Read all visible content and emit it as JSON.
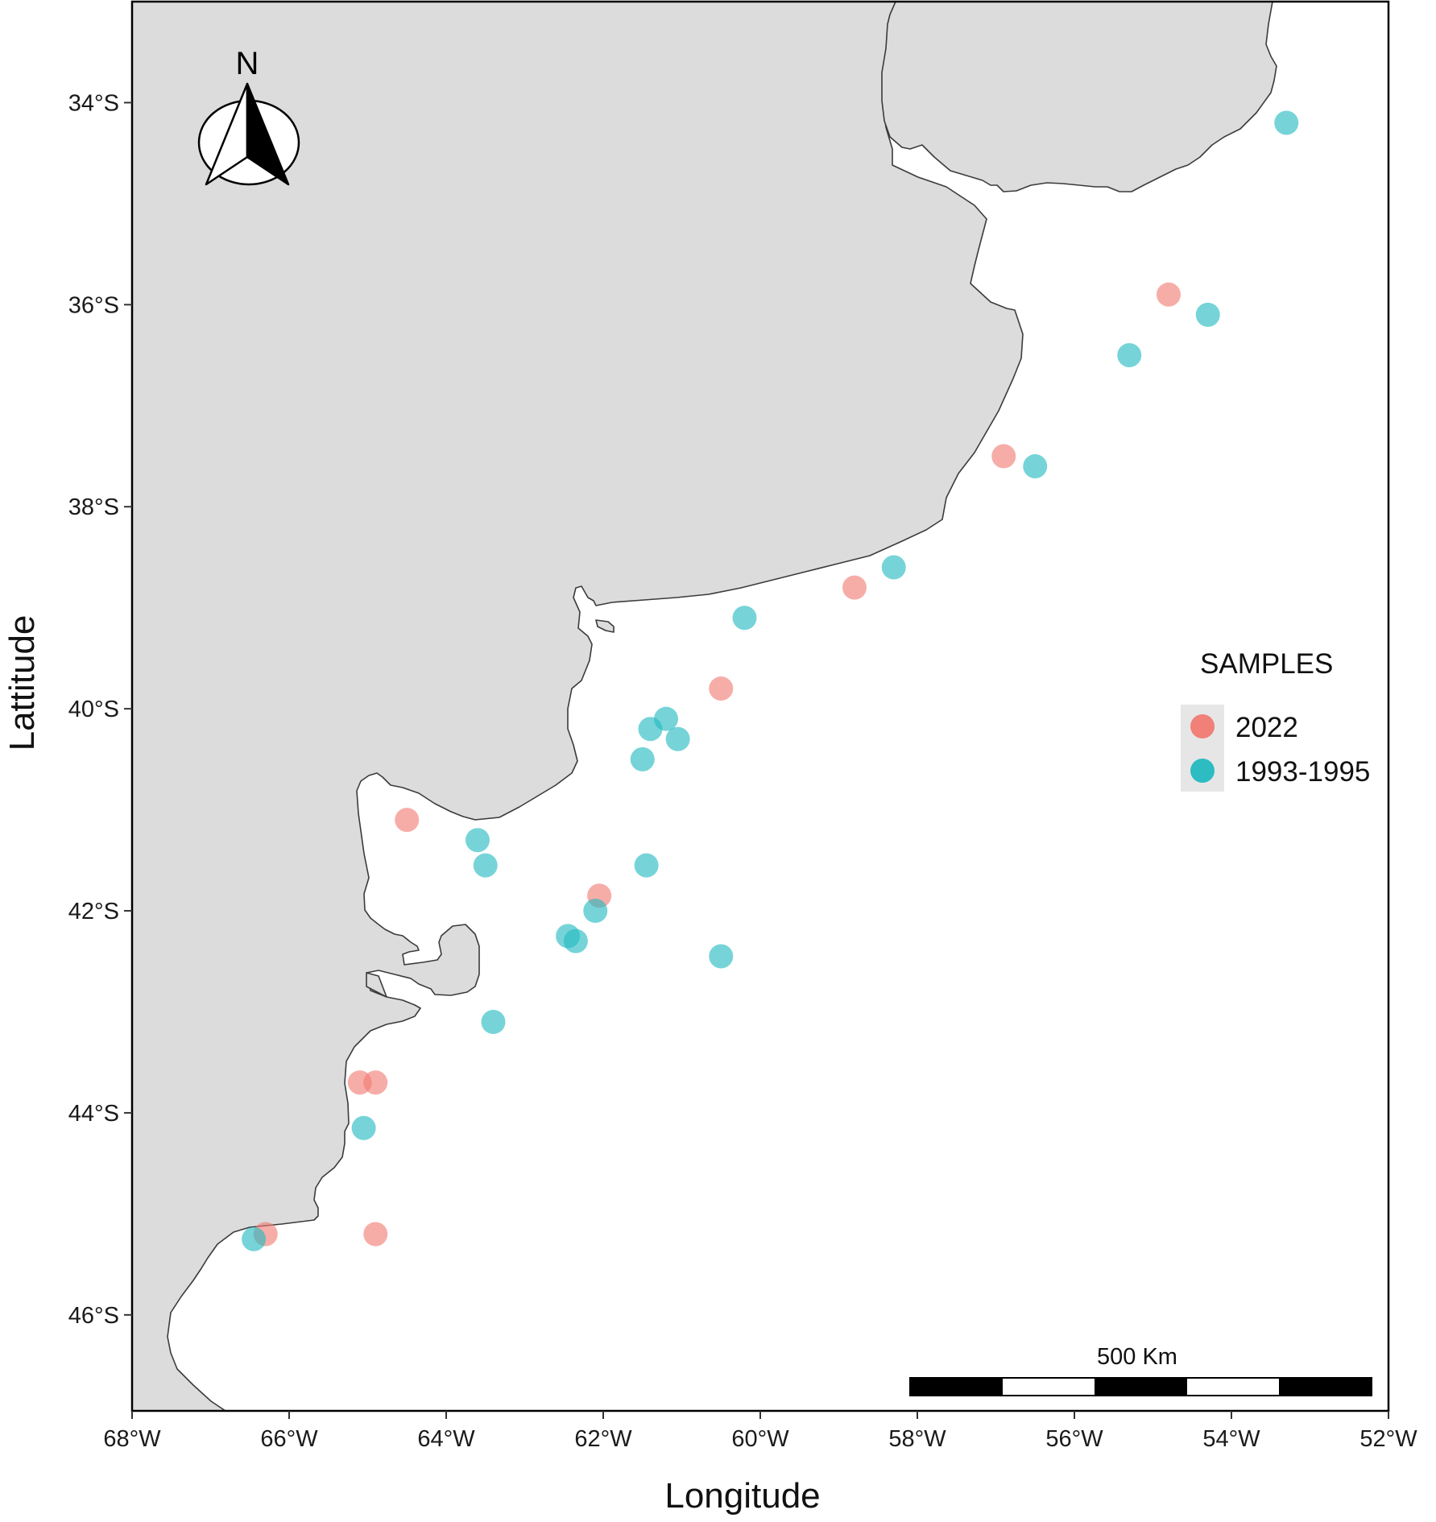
{
  "map": {
    "xlabel": "Longitude",
    "ylabel": "Lattitude",
    "lon_range": [
      -68,
      -52
    ],
    "lat_range": [
      -46.95,
      -33.0
    ],
    "x_ticks": [
      {
        "value": -68,
        "label": "68°W"
      },
      {
        "value": -66,
        "label": "66°W"
      },
      {
        "value": -64,
        "label": "64°W"
      },
      {
        "value": -62,
        "label": "62°W"
      },
      {
        "value": -60,
        "label": "60°W"
      },
      {
        "value": -58,
        "label": "58°W"
      },
      {
        "value": -56,
        "label": "56°W"
      },
      {
        "value": -54,
        "label": "54°W"
      },
      {
        "value": -52,
        "label": "52°W"
      }
    ],
    "y_ticks": [
      {
        "value": -34,
        "label": "34°S"
      },
      {
        "value": -36,
        "label": "36°S"
      },
      {
        "value": -38,
        "label": "38°S"
      },
      {
        "value": -40,
        "label": "40°S"
      },
      {
        "value": -42,
        "label": "42°S"
      },
      {
        "value": -44,
        "label": "44°S"
      },
      {
        "value": -46,
        "label": "46°S"
      }
    ],
    "land_color": "#dcdcdc",
    "coast_color": "#3b3b3b",
    "north_arrow_label": "N",
    "north_arrow_placement": "top-left",
    "scale_bar": {
      "label": "500 Km",
      "placement": "bottom-right",
      "segments": 5
    }
  },
  "legend": {
    "title": "SAMPLES",
    "placement": "right",
    "items": [
      {
        "label": "2022",
        "color": "#F07A72"
      },
      {
        "label": "1993-1995",
        "color": "#22B9C0"
      }
    ]
  },
  "chart_data": {
    "type": "scatter",
    "xlabel": "Longitude",
    "ylabel": "Lattitude",
    "xlim": [
      -68,
      -52
    ],
    "ylim": [
      -46.95,
      -33.0
    ],
    "series": [
      {
        "name": "2022",
        "color": "#F07A72",
        "points": [
          [
            -54.8,
            -35.9
          ],
          [
            -56.9,
            -37.5
          ],
          [
            -58.8,
            -38.8
          ],
          [
            -60.5,
            -39.8
          ],
          [
            -64.5,
            -41.1
          ],
          [
            -62.05,
            -41.85
          ],
          [
            -65.1,
            -43.7
          ],
          [
            -64.9,
            -43.7
          ],
          [
            -66.3,
            -45.2
          ],
          [
            -64.9,
            -45.2
          ]
        ]
      },
      {
        "name": "1993-1995",
        "color": "#22B9C0",
        "points": [
          [
            -53.3,
            -34.2
          ],
          [
            -54.3,
            -36.1
          ],
          [
            -55.3,
            -36.5
          ],
          [
            -56.5,
            -37.6
          ],
          [
            -58.3,
            -38.6
          ],
          [
            -60.2,
            -39.1
          ],
          [
            -61.4,
            -40.2
          ],
          [
            -61.2,
            -40.1
          ],
          [
            -61.05,
            -40.3
          ],
          [
            -61.5,
            -40.5
          ],
          [
            -63.6,
            -41.3
          ],
          [
            -63.5,
            -41.55
          ],
          [
            -61.45,
            -41.55
          ],
          [
            -62.1,
            -42.0
          ],
          [
            -62.45,
            -42.25
          ],
          [
            -62.35,
            -42.3
          ],
          [
            -60.5,
            -42.45
          ],
          [
            -63.4,
            -43.1
          ],
          [
            -65.05,
            -44.15
          ],
          [
            -66.45,
            -45.25
          ]
        ]
      }
    ]
  }
}
